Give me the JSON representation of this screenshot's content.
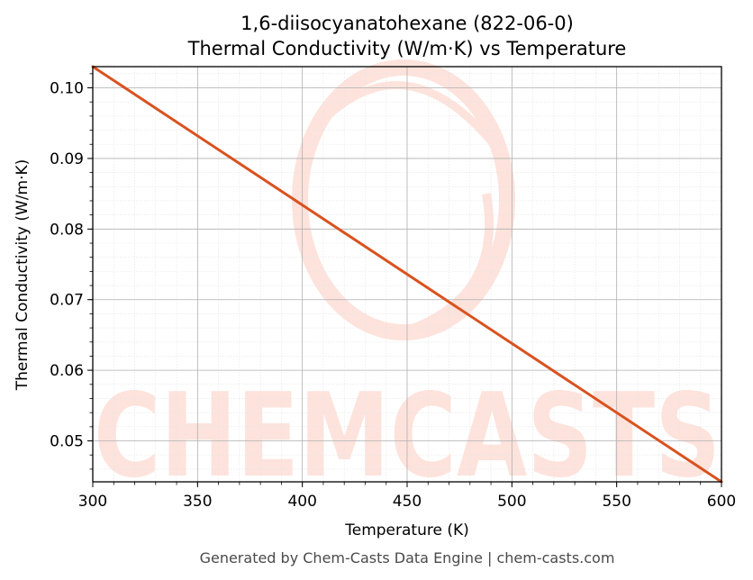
{
  "chart_data": {
    "type": "line",
    "title": "1,6-diisocyanatohexane (822-06-0)",
    "subtitle": "Thermal Conductivity (W/m·K) vs Temperature",
    "xlabel": "Temperature (K)",
    "ylabel": "Thermal Conductivity (W/m·K)",
    "xlim": [
      300,
      600
    ],
    "ylim": [
      0.0442,
      0.103
    ],
    "xticks": [
      300,
      350,
      400,
      450,
      500,
      550,
      600
    ],
    "yticks": [
      0.05,
      0.06,
      0.07,
      0.08,
      0.09,
      0.1
    ],
    "xtick_labels": [
      "300",
      "350",
      "400",
      "450",
      "500",
      "550",
      "600"
    ],
    "ytick_labels": [
      "0.05",
      "0.06",
      "0.07",
      "0.08",
      "0.09",
      "0.10"
    ],
    "grid": true,
    "series": [
      {
        "x": [
          300,
          600
        ],
        "y": [
          0.103,
          0.0442
        ],
        "color": "#d9521f"
      }
    ]
  },
  "watermark": {
    "text": "CHEMCASTS",
    "color": "#fde3dc"
  },
  "footer": "Generated by Chem-Casts Data Engine | chem-casts.com"
}
